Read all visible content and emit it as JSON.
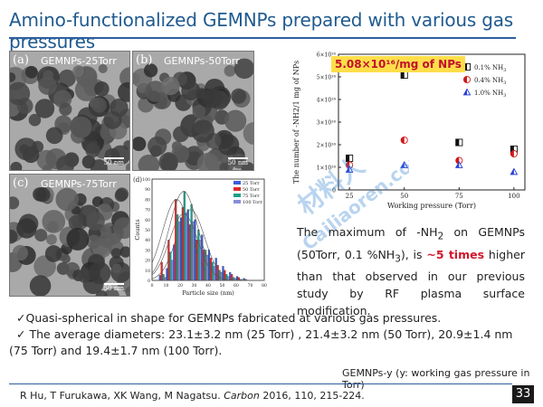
{
  "slide": {
    "title": "Amino-functionalized GEMNPs prepared with various gas pressures",
    "page_number": "33"
  },
  "tem_panels": [
    {
      "label": "(a)",
      "name": "GEMNPs-25Torr",
      "scale": "50 nm"
    },
    {
      "label": "(b)",
      "name": "GEMNPs-50Torr",
      "scale": "50 nm"
    },
    {
      "label": "(c)",
      "name": "GEMNPs-75Torr",
      "scale": "50 nm"
    }
  ],
  "highlight_label": "5.08×10¹⁶/mg of NPs",
  "watermark_text": "Cailiaoren.com",
  "watermark_logo": "材料人",
  "description": {
    "part1": "The maximum of -NH",
    "sub1": "2",
    "part2": " on GEMNPs (50Torr, 0.1 %NH",
    "sub2": "3",
    "part3": "), is ",
    "emphasis": "~5 times",
    "part4": " higher than that observed in our previous study by RF plasma surface modification."
  },
  "bullets": {
    "line1": "Quasi-spherical in shape for GEMNPs fabricated at various gas pressures.",
    "line2": "The average diameters: 23.1±3.2 nm (25 Torr) , 21.4±3.2 nm (50 Torr), 20.9±1.4 nm",
    "line3": "(75 Torr) and 19.4±1.7 nm (100 Torr).",
    "mark": "✓"
  },
  "footnote": "GEMNPs-y (y: working gas pressure in Torr)",
  "reference": {
    "authors": "R Hu, T Furukawa, XK Wang, M Nagatsu. ",
    "journal": "Carbon",
    "details": " 2016, 110, 215-224."
  },
  "chart_data": [
    {
      "type": "scatter",
      "xlabel": "Working pressure (Torr)",
      "ylabel": "The number of -NH2/1 mg of NPs",
      "y_exponent": "×10¹⁶",
      "xlim": [
        20,
        105
      ],
      "ylim": [
        0,
        6
      ],
      "xticks": [
        25,
        50,
        75,
        100
      ],
      "yticks": [
        0,
        1,
        2,
        3,
        4,
        5,
        6
      ],
      "ytick_labels": [
        "0",
        "1×10¹⁶",
        "2×10¹⁶",
        "3×10¹⁶",
        "4×10¹⁶",
        "5×10¹⁶",
        "6×10¹⁶"
      ],
      "legend_position": "top-right",
      "series": [
        {
          "name": "0.1% NH3",
          "label_main": "0.1% NH",
          "label_sub": "3",
          "marker": "half-square",
          "color": "#111111",
          "x": [
            25,
            50,
            75,
            100
          ],
          "y": [
            1.4,
            5.08,
            2.1,
            1.8
          ]
        },
        {
          "name": "0.4% NH3",
          "label_main": "0.4% NH",
          "label_sub": "3",
          "marker": "half-circle",
          "color": "#d01818",
          "x": [
            25,
            50,
            75,
            100
          ],
          "y": [
            1.1,
            2.2,
            1.3,
            1.6
          ]
        },
        {
          "name": "1.0% NH3",
          "label_main": "1.0% NH",
          "label_sub": "3",
          "marker": "half-triangle",
          "color": "#2a3fd6",
          "x": [
            25,
            50,
            75,
            100
          ],
          "y": [
            0.9,
            1.1,
            1.1,
            0.8
          ]
        }
      ]
    },
    {
      "type": "bar",
      "panel_label": "(d)",
      "xlabel": "Particle size (nm)",
      "ylabel": "Counts",
      "xlim": [
        0,
        80
      ],
      "ylim": [
        0,
        100
      ],
      "xticks": [
        0,
        10,
        20,
        30,
        40,
        50,
        60,
        70,
        80
      ],
      "yticks": [
        0,
        10,
        20,
        30,
        40,
        50,
        60,
        70,
        80,
        90,
        100
      ],
      "legend_position": "top-right",
      "categories": [
        7.5,
        12.5,
        17.5,
        22.5,
        27.5,
        32.5,
        37.5,
        42.5,
        47.5,
        52.5,
        57.5,
        62.5,
        67.5
      ],
      "series": [
        {
          "name": "25 Torr",
          "color": "#3a5fd8",
          "values": [
            5,
            12,
            35,
            62,
            70,
            60,
            45,
            30,
            22,
            14,
            8,
            4,
            2
          ]
        },
        {
          "name": "50 Torr",
          "color": "#e02a2a",
          "values": [
            18,
            40,
            80,
            72,
            55,
            40,
            30,
            22,
            15,
            10,
            6,
            3,
            1
          ]
        },
        {
          "name": "75 Torr",
          "color": "#1aa08a",
          "values": [
            6,
            28,
            65,
            88,
            75,
            50,
            30,
            18,
            10,
            6,
            3,
            1,
            0
          ]
        },
        {
          "name": "100 Torr",
          "color": "#8a8fd8",
          "values": [
            3,
            20,
            58,
            66,
            58,
            40,
            25,
            14,
            8,
            4,
            2,
            1,
            0
          ]
        }
      ]
    }
  ]
}
